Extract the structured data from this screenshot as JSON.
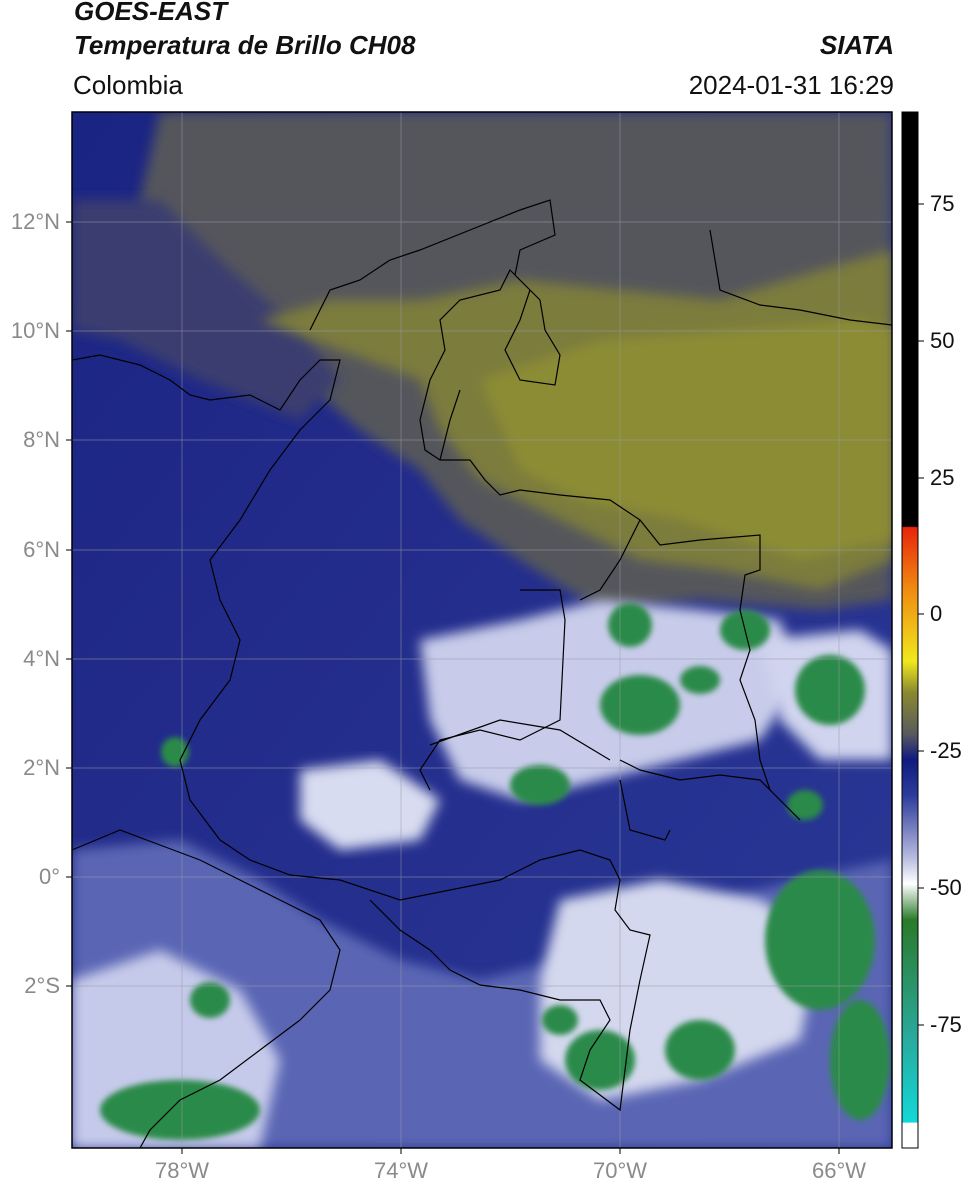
{
  "header": {
    "title_line1": "GOES-EAST",
    "title_line2": "Temperatura de Brillo CH08",
    "region": "Colombia",
    "brand": "SIATA",
    "timestamp": "2024-01-31 16:29"
  },
  "map": {
    "lat_labels": [
      "12°N",
      "10°N",
      "8°N",
      "6°N",
      "4°N",
      "2°N",
      "0°",
      "2°S"
    ],
    "lon_labels": [
      "78°W",
      "74°W",
      "70°W",
      "66°W"
    ],
    "extent": {
      "lon_min": -80,
      "lon_max": -65,
      "lat_min": -5,
      "lat_max": 14
    }
  },
  "colorbar": {
    "ticks": [
      "75",
      "50",
      "25",
      "0",
      "-25",
      "-50",
      "-75"
    ],
    "colors": {
      "black": "#000000",
      "red": "#e8240c",
      "orange": "#f08a10",
      "yellow": "#f0e81e",
      "olive": "#8a8a30",
      "gray": "#5a5a5e",
      "navy": "#101a80",
      "blue": "#2c3c9c",
      "lavender": "#b8bce0",
      "white": "#ffffff",
      "green": "#2a7a2a",
      "teal": "#2aa89a",
      "cyan": "#12d8d8"
    }
  }
}
